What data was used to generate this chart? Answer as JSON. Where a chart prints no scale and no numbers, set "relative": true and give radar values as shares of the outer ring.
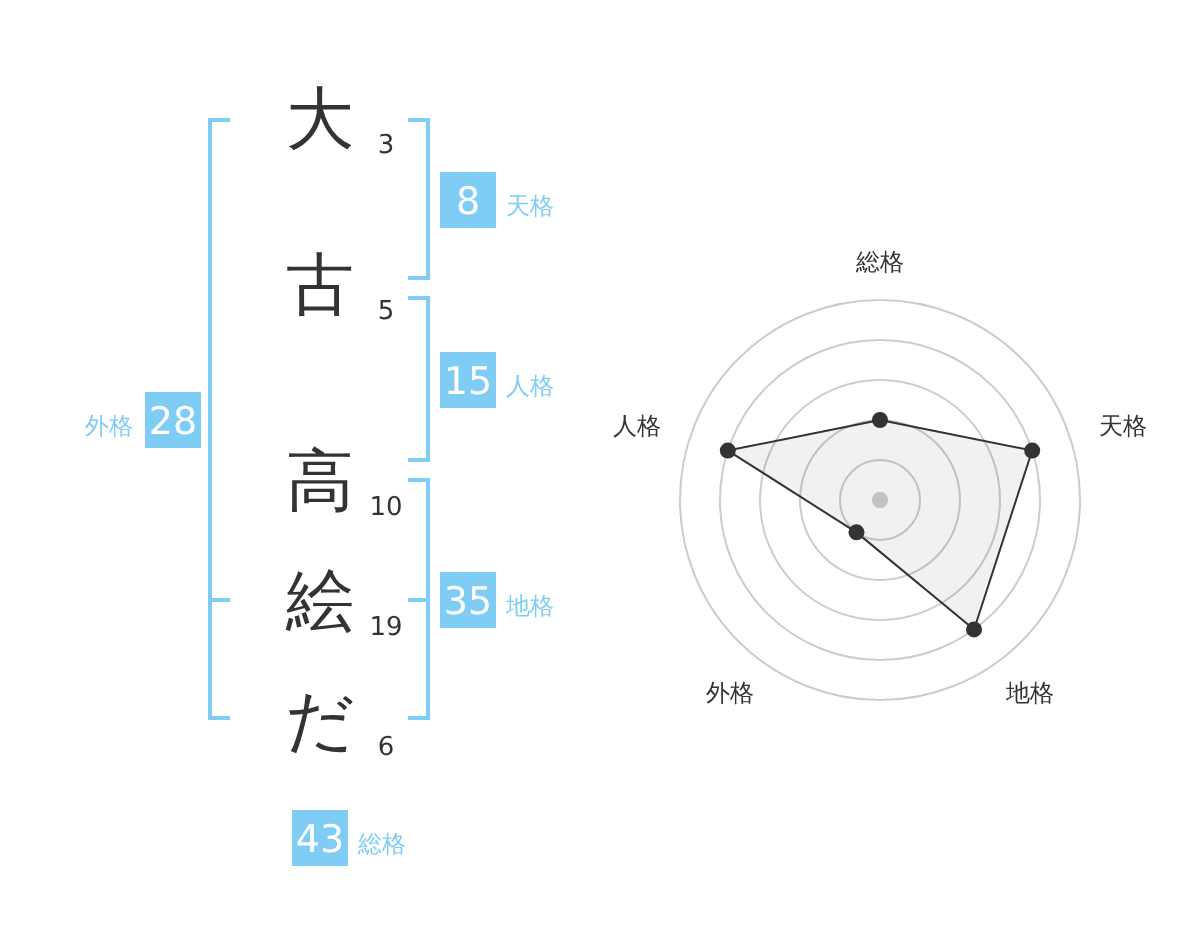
{
  "chart_data": [
    {
      "type": "other",
      "categories": [
        "大",
        "古",
        "高",
        "絵",
        "だ"
      ],
      "values": [
        3,
        5,
        10,
        19,
        6
      ],
      "data_labels": true
    },
    {
      "type": "other",
      "categories": [
        "天格",
        "人格",
        "地格",
        "外格",
        "総格"
      ],
      "values": [
        8,
        15,
        35,
        28,
        43
      ],
      "color": "#7fcdf5",
      "data_labels": true
    },
    {
      "type": "radar",
      "categories": [
        "総格",
        "天格",
        "地格",
        "外格",
        "人格"
      ],
      "relative": true,
      "grid": true,
      "marker": "circle",
      "series": [
        {
          "color": "#333333",
          "values": [
            0.4,
            0.8,
            0.8,
            0.2,
            0.8
          ]
        }
      ]
    }
  ]
}
